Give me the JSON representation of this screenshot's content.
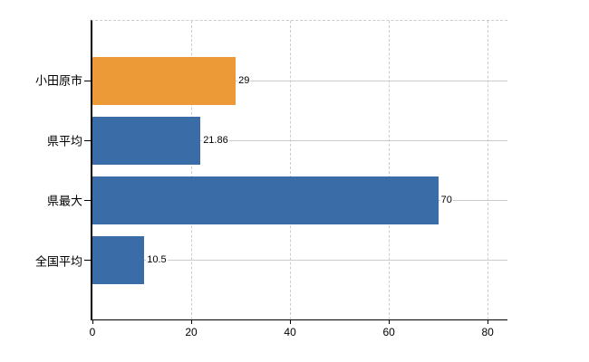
{
  "chart_data": {
    "type": "bar",
    "orientation": "horizontal",
    "title": "",
    "categories": [
      "小田原市",
      "県平均",
      "県最大",
      "全国平均"
    ],
    "values": [
      29,
      21.86,
      70,
      10.5
    ],
    "value_labels": [
      "29",
      "21.86",
      "70",
      "10.5"
    ],
    "bar_colors": [
      "#EC9A38",
      "#3A6CA8",
      "#3A6CA8",
      "#3A6CA8"
    ],
    "x_tick_labels": [
      "0",
      "20",
      "40",
      "60",
      "80"
    ],
    "x_tick_values": [
      0,
      20,
      40,
      60,
      80
    ],
    "xlim": [
      0,
      84
    ],
    "ylabel": "",
    "xlabel": "",
    "legend": {
      "visible": false
    },
    "grid": {
      "vertical_style": "dashed",
      "horizontal_style": "solid",
      "color": "#CCCCCC"
    },
    "colors": {
      "accent_orange": "#EC9A38",
      "accent_blue": "#3A6CA8",
      "axis": "#000000",
      "background": "#FFFFFF"
    }
  }
}
